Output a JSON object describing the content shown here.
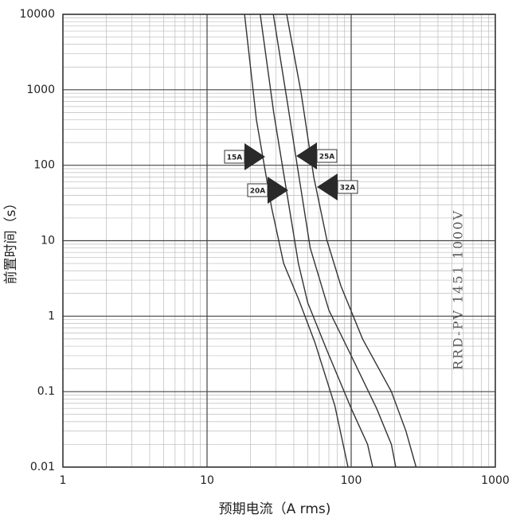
{
  "chart_data": {
    "type": "line",
    "x_label": "预期电流（A rms)",
    "y_label": "前置时间（s）",
    "annotation": "RRD-PV 1451 1000V",
    "log_x": true,
    "log_y": true,
    "grid": true,
    "xlim": [
      1,
      1000
    ],
    "xticks": [
      1,
      10,
      100,
      1000
    ],
    "ylim": [
      0.01,
      10000
    ],
    "yticks": [
      0.01,
      0.1,
      1,
      10,
      100,
      1000,
      10000
    ],
    "series": [
      {
        "name": "15A",
        "color": "#333333",
        "x": [
          18.2,
          22,
          28,
          34,
          43,
          56,
          77,
          95
        ],
        "values": [
          10000,
          400,
          28,
          5,
          1.7,
          0.45,
          0.065,
          0.01
        ]
      },
      {
        "name": "20A",
        "color": "#333333",
        "x": [
          23.4,
          29,
          36,
          43,
          50,
          68,
          100,
          130,
          141
        ],
        "values": [
          10000,
          500,
          40,
          5,
          1.5,
          0.35,
          0.06,
          0.02,
          0.01
        ]
      },
      {
        "name": "25A",
        "color": "#333333",
        "x": [
          28.8,
          36,
          44,
          52,
          70,
          100,
          150,
          190,
          204
        ],
        "values": [
          10000,
          700,
          60,
          8,
          1.2,
          0.3,
          0.06,
          0.02,
          0.01
        ]
      },
      {
        "name": "32A",
        "color": "#333333",
        "x": [
          35.7,
          45,
          55,
          68,
          85,
          120,
          190,
          240,
          282
        ],
        "values": [
          10000,
          900,
          70,
          10,
          2.5,
          0.5,
          0.1,
          0.03,
          0.01
        ]
      }
    ]
  }
}
